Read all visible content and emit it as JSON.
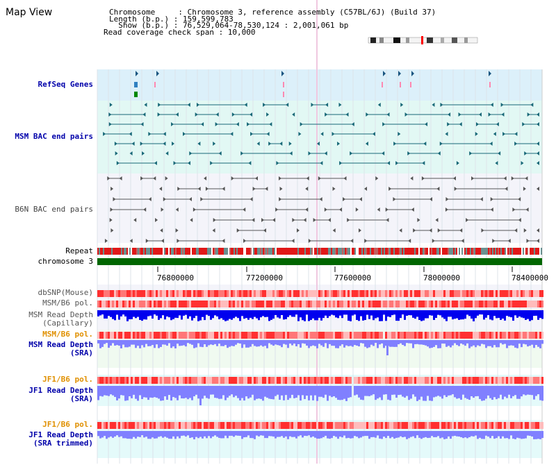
{
  "map_title": "Map View",
  "info": {
    "chromosome_line": "Chromosome     : Chromosome 3, reference assembly (C57BL/6J) (Build 37)",
    "length_line": "Length (b.p.) : 159,599,783",
    "show_line": "  Show (b.p.) : 76,529,064-78,530,124 : 2,001,061 bp",
    "coverage_line": "Read coverage check span : 10,000"
  },
  "labels": {
    "refseq": "RefSeq Genes",
    "msm_bac": "MSM BAC end pairs",
    "b6n_bac": "B6N BAC end pairs",
    "repeat": "Repeat",
    "chromosome": "chromosome 3",
    "dbsnp": "dbSNP(Mouse)",
    "msm_pol1": "MSM/B6 pol.",
    "msm_depth_cap": "MSM Read Depth\n(Capillary)",
    "msm_pol2": "MSM/B6 pol.",
    "msm_depth_sra": "MSM Read Depth\n(SRA)",
    "jf1_pol1": "JF1/B6 pol.",
    "jf1_depth_sra": "JF1 Read Depth\n(SRA)",
    "jf1_pol2": "JF1/B6 pol.",
    "jf1_depth_trim": "JF1 Read Depth\n(SRA trimmed)"
  },
  "axis": {
    "ticks": [
      "76800000",
      "77200000",
      "77600000",
      "78000000",
      "78400000"
    ]
  },
  "colors": {
    "refseq_band": "#dcf0fa",
    "msm_band": "#e2f8f4",
    "chrom_bar": "#006600",
    "depth_blue": "#0000ee",
    "depth_light": "#8080ff",
    "pol_red": "#ff5050",
    "label_blue": "#0000aa",
    "label_orange": "#e09000",
    "highlight": "#ff0000"
  }
}
